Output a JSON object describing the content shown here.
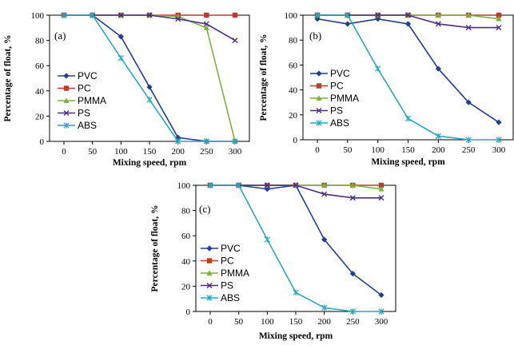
{
  "chart_data": [
    {
      "type": "line",
      "panel_label": "(a)",
      "xlabel": "Mixing speed, rpm",
      "ylabel": "Percentage of float, %",
      "x": [
        0,
        50,
        100,
        150,
        200,
        250,
        300
      ],
      "ylim": [
        0,
        100
      ],
      "yticks": [
        0,
        20,
        40,
        60,
        80,
        100
      ],
      "legend_position": "center-left",
      "series": [
        {
          "name": "PVC",
          "color": "#1f3f8f",
          "marker": "diamond",
          "values": [
            100,
            100,
            83,
            43,
            3,
            0,
            0
          ]
        },
        {
          "name": "PC",
          "color": "#c0392b",
          "marker": "square",
          "values": [
            100,
            100,
            100,
            100,
            100,
            100,
            100
          ]
        },
        {
          "name": "PMMA",
          "color": "#7fb03a",
          "marker": "triangle",
          "values": [
            100,
            100,
            100,
            100,
            99,
            90,
            0
          ]
        },
        {
          "name": "PS",
          "color": "#4b2e83",
          "marker": "x",
          "values": [
            100,
            100,
            100,
            100,
            97,
            93,
            80
          ]
        },
        {
          "name": "ABS",
          "color": "#2aa7c0",
          "marker": "star",
          "values": [
            100,
            100,
            66,
            33,
            0,
            0,
            0
          ]
        }
      ]
    },
    {
      "type": "line",
      "panel_label": "(b)",
      "xlabel": "Mixing speed, rpm",
      "ylabel": "Percentage of float, %",
      "x": [
        0,
        50,
        100,
        150,
        200,
        250,
        300
      ],
      "ylim": [
        0,
        100
      ],
      "yticks": [
        0,
        20,
        40,
        60,
        80,
        100
      ],
      "legend_position": "center-left",
      "series": [
        {
          "name": "PVC",
          "color": "#1f3f8f",
          "marker": "diamond",
          "values": [
            97,
            93,
            97,
            93,
            57,
            30,
            14
          ]
        },
        {
          "name": "PC",
          "color": "#c0392b",
          "marker": "square",
          "values": [
            100,
            100,
            100,
            100,
            100,
            100,
            100
          ]
        },
        {
          "name": "PMMA",
          "color": "#7fb03a",
          "marker": "triangle",
          "values": [
            100,
            100,
            100,
            100,
            100,
            100,
            97
          ]
        },
        {
          "name": "PS",
          "color": "#4b2e83",
          "marker": "x",
          "values": [
            100,
            100,
            100,
            100,
            93,
            90,
            90
          ]
        },
        {
          "name": "ABS",
          "color": "#2aa7c0",
          "marker": "star",
          "values": [
            100,
            100,
            57,
            17,
            3,
            0,
            0
          ]
        }
      ]
    },
    {
      "type": "line",
      "panel_label": "(c)",
      "xlabel": "Mixing speed, rpm",
      "ylabel": "Percentage of float, %",
      "x": [
        0,
        50,
        100,
        150,
        200,
        250,
        300
      ],
      "ylim": [
        0,
        100
      ],
      "yticks": [
        0,
        20,
        40,
        60,
        80,
        100
      ],
      "legend_position": "center-left",
      "series": [
        {
          "name": "PVC",
          "color": "#1f3f8f",
          "marker": "diamond",
          "values": [
            100,
            100,
            97,
            100,
            57,
            30,
            13
          ]
        },
        {
          "name": "PC",
          "color": "#c0392b",
          "marker": "square",
          "values": [
            100,
            100,
            100,
            100,
            100,
            100,
            100
          ]
        },
        {
          "name": "PMMA",
          "color": "#7fb03a",
          "marker": "triangle",
          "values": [
            100,
            100,
            100,
            100,
            100,
            100,
            97
          ]
        },
        {
          "name": "PS",
          "color": "#4b2e83",
          "marker": "x",
          "values": [
            100,
            100,
            100,
            100,
            93,
            90,
            90
          ]
        },
        {
          "name": "ABS",
          "color": "#2aa7c0",
          "marker": "star",
          "values": [
            100,
            100,
            57,
            15,
            3,
            0,
            0
          ]
        }
      ]
    }
  ]
}
